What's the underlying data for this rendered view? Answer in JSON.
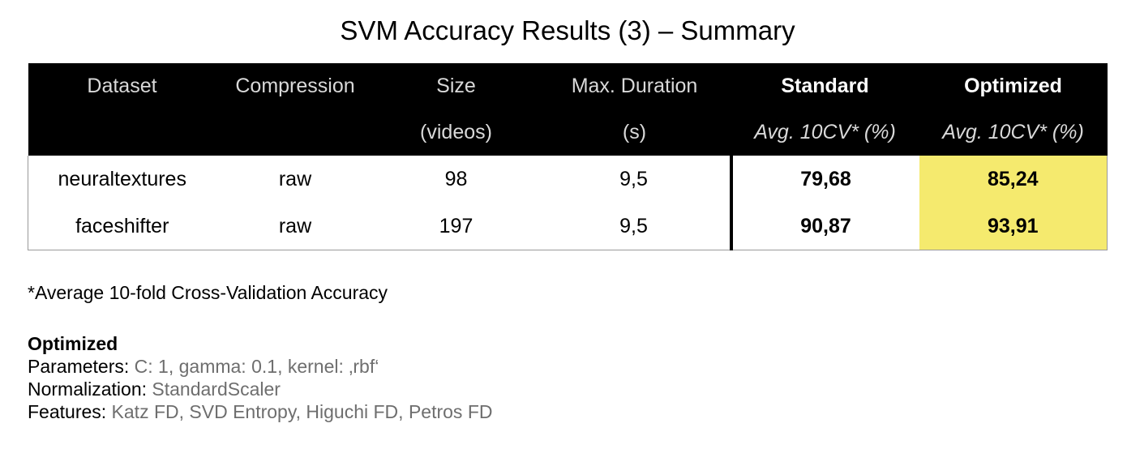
{
  "title": "SVM Accuracy Results (3) – Summary",
  "table": {
    "headers_row1": [
      "Dataset",
      "Compression",
      "Size",
      "Max. Duration",
      "Standard",
      "Optimized"
    ],
    "headers_row2": [
      "",
      "",
      "(videos)",
      "(s)",
      "Avg. 10CV* (%)",
      "Avg. 10CV* (%)"
    ],
    "rows": [
      [
        "neuraltextures",
        "raw",
        "98",
        "9,5",
        "79,68",
        "85,24"
      ],
      [
        "faceshifter",
        "raw",
        "197",
        "9,5",
        "90,87",
        "93,91"
      ]
    ],
    "highlight_color": "#f5ea6e"
  },
  "footnote": "*Average 10-fold Cross-Validation Accuracy",
  "optimized_section": {
    "heading": "Optimized",
    "parameters_label": "Parameters:",
    "parameters_value": "C: 1, gamma: 0.1, kernel: ‚rbf‘",
    "normalization_label": "Normalization:",
    "normalization_value": "StandardScaler",
    "features_label": "Features:",
    "features_value": "Katz FD, SVD Entropy, Higuchi FD, Petros FD"
  }
}
